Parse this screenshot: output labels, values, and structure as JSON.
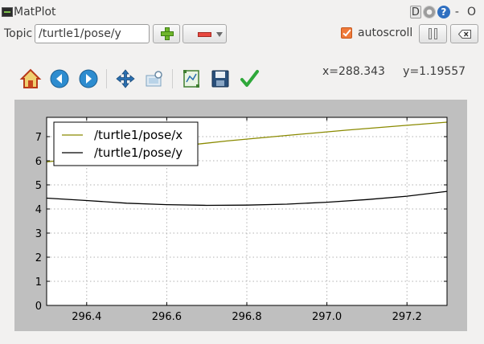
{
  "window": {
    "title": "MatPlot",
    "buttons": {
      "d": "D",
      "help": "?",
      "close": "O",
      "minus": "-"
    }
  },
  "topic_bar": {
    "label": "Topic",
    "input_value": "/turtle1/pose/y",
    "autoscroll_label": "autoscroll",
    "autoscroll_checked": true
  },
  "toolbar": {
    "tools": [
      "home-icon",
      "back-icon",
      "forward-icon",
      "pan-icon",
      "zoom-icon",
      "configure-subplots-icon",
      "save-icon",
      "edit-check-icon"
    ]
  },
  "cursor_readout": "x=288.343     y=1.19557",
  "chart_data": {
    "type": "line",
    "xlim": [
      296.3,
      297.3
    ],
    "ylim": [
      0,
      7.8
    ],
    "x_ticks": [
      "296.4",
      "296.6",
      "296.8",
      "297.0",
      "297.2"
    ],
    "y_ticks": [
      "0",
      "1",
      "2",
      "3",
      "4",
      "5",
      "6",
      "7"
    ],
    "grid": true,
    "legend_position": "upper-left",
    "series": [
      {
        "name": "/turtle1/pose/x",
        "color": "#8a8a00",
        "x": [
          296.3,
          296.45,
          296.6,
          296.75,
          296.9,
          297.05,
          297.2,
          297.3
        ],
        "y": [
          5.95,
          6.25,
          6.55,
          6.82,
          7.05,
          7.27,
          7.47,
          7.6
        ]
      },
      {
        "name": "/turtle1/pose/y",
        "color": "#000000",
        "x": [
          296.3,
          296.4,
          296.5,
          296.6,
          296.7,
          296.8,
          296.9,
          297.0,
          297.1,
          297.2,
          297.3
        ],
        "y": [
          4.45,
          4.35,
          4.24,
          4.18,
          4.15,
          4.16,
          4.2,
          4.28,
          4.39,
          4.53,
          4.73
        ]
      }
    ]
  }
}
